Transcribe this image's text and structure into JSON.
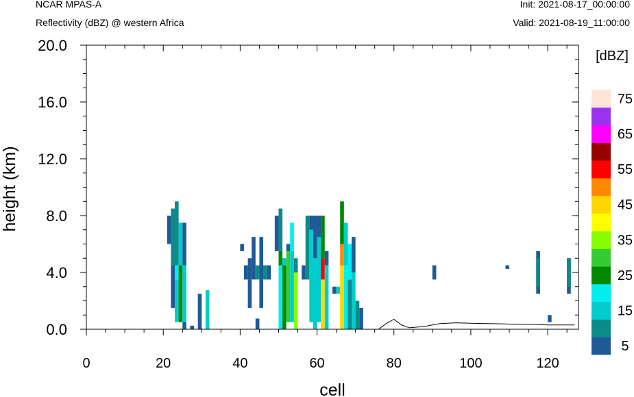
{
  "header": {
    "model": "NCAR MPAS-A",
    "field": "Reflectivity (dBZ) @ western Africa",
    "init": "Init: 2021-08-17_00:00:00",
    "valid": "Valid: 2021-08-19_11:00:00"
  },
  "chart_data": {
    "type": "heatmap",
    "title": "Reflectivity (dBZ) @ western Africa",
    "xlabel": "cell",
    "ylabel": "height (km)",
    "xlim": [
      0,
      128
    ],
    "ylim": [
      0,
      20
    ],
    "xticks": [
      "0",
      "20",
      "40",
      "60",
      "80",
      "100",
      "120"
    ],
    "yticks": [
      "0.0",
      "4.0",
      "8.0",
      "12.0",
      "16.0",
      "20.0"
    ],
    "cell_height_km": 0.25,
    "colorbar": {
      "title": "[dBZ]",
      "levels": [
        5,
        10,
        15,
        20,
        25,
        30,
        35,
        40,
        45,
        50,
        55,
        60,
        65,
        70,
        75
      ],
      "labels": [
        "5",
        "15",
        "25",
        "35",
        "45",
        "55",
        "65",
        "75"
      ],
      "colors": [
        "#1f5a96",
        "#0d8a8a",
        "#00cccc",
        "#00eeee",
        "#008800",
        "#33cc33",
        "#88ff00",
        "#ffff00",
        "#ffd700",
        "#ff8800",
        "#ff0000",
        "#990000",
        "#ff00ff",
        "#9933ee",
        "#ffe4d8"
      ]
    },
    "terrain": {
      "x": [
        0,
        76,
        78,
        80,
        81,
        82,
        84,
        86,
        88,
        92,
        96,
        100,
        104,
        108,
        112,
        116,
        120,
        124,
        127
      ],
      "height_km": [
        0.0,
        0.0,
        0.4,
        0.7,
        0.5,
        0.3,
        0.1,
        0.15,
        0.2,
        0.4,
        0.45,
        0.42,
        0.4,
        0.38,
        0.35,
        0.35,
        0.3,
        0.3,
        0.3
      ]
    },
    "columns": [
      {
        "x": 21,
        "w": 1,
        "segs": [
          [
            6.0,
            8.0,
            5
          ]
        ]
      },
      {
        "x": 22,
        "w": 1,
        "segs": [
          [
            1.5,
            4.5,
            5
          ],
          [
            4.5,
            8.5,
            10
          ]
        ]
      },
      {
        "x": 23,
        "w": 1,
        "segs": [
          [
            0.5,
            3.5,
            15
          ],
          [
            3.5,
            4.5,
            20
          ],
          [
            4.5,
            9.0,
            10
          ]
        ]
      },
      {
        "x": 24,
        "w": 1,
        "segs": [
          [
            0.5,
            4.5,
            25
          ],
          [
            4.5,
            7.5,
            15
          ]
        ]
      },
      {
        "x": 25,
        "w": 1,
        "segs": [
          [
            0.0,
            0.5,
            5
          ],
          [
            0.5,
            4.5,
            15
          ],
          [
            4.5,
            7.5,
            5
          ]
        ]
      },
      {
        "x": 27,
        "w": 1,
        "segs": [
          [
            0.0,
            0.25,
            5
          ]
        ]
      },
      {
        "x": 29,
        "w": 1,
        "segs": [
          [
            0.0,
            2.5,
            5
          ]
        ]
      },
      {
        "x": 31,
        "w": 1,
        "segs": [
          [
            0.0,
            2.75,
            15
          ]
        ]
      },
      {
        "x": 40,
        "w": 1,
        "segs": [
          [
            5.5,
            6.0,
            5
          ]
        ]
      },
      {
        "x": 41,
        "w": 1,
        "segs": [
          [
            3.5,
            4.5,
            5
          ]
        ]
      },
      {
        "x": 42,
        "w": 1,
        "segs": [
          [
            3.5,
            5.0,
            5
          ],
          [
            1.5,
            3.5,
            5
          ]
        ]
      },
      {
        "x": 43,
        "w": 1,
        "segs": [
          [
            3.5,
            6.5,
            5
          ]
        ]
      },
      {
        "x": 44,
        "w": 1,
        "segs": [
          [
            3.5,
            4.5,
            10
          ],
          [
            0.0,
            0.75,
            5
          ]
        ]
      },
      {
        "x": 45,
        "w": 1,
        "segs": [
          [
            1.5,
            3.5,
            5
          ],
          [
            3.5,
            6.5,
            5
          ]
        ]
      },
      {
        "x": 46,
        "w": 1,
        "segs": [
          [
            3.5,
            4.5,
            10
          ]
        ]
      },
      {
        "x": 47,
        "w": 1,
        "segs": [
          [
            3.5,
            4.5,
            5
          ]
        ]
      },
      {
        "x": 49,
        "w": 1,
        "segs": [
          [
            5.5,
            8.0,
            5
          ]
        ]
      },
      {
        "x": 50,
        "w": 1,
        "segs": [
          [
            0.0,
            4.5,
            20
          ],
          [
            4.5,
            5.5,
            25
          ],
          [
            5.5,
            8.5,
            10
          ]
        ]
      },
      {
        "x": 51,
        "w": 1,
        "segs": [
          [
            0.0,
            4.5,
            25
          ],
          [
            4.5,
            5.0,
            15
          ]
        ]
      },
      {
        "x": 52,
        "w": 1,
        "segs": [
          [
            0.5,
            5.5,
            30
          ],
          [
            5.5,
            6.0,
            5
          ]
        ]
      },
      {
        "x": 53,
        "w": 1,
        "segs": [
          [
            0.5,
            5.5,
            15
          ],
          [
            5.5,
            7.5,
            20
          ]
        ]
      },
      {
        "x": 54,
        "w": 1,
        "segs": [
          [
            0.0,
            4.0,
            35
          ],
          [
            4.0,
            5.0,
            10
          ]
        ]
      },
      {
        "x": 56,
        "w": 1,
        "segs": [
          [
            3.5,
            4.5,
            5
          ]
        ]
      },
      {
        "x": 57,
        "w": 1,
        "segs": [
          [
            3.5,
            8.0,
            10
          ]
        ]
      },
      {
        "x": 58,
        "w": 1,
        "segs": [
          [
            0.5,
            7.0,
            15
          ],
          [
            7.0,
            8.0,
            5
          ]
        ]
      },
      {
        "x": 59,
        "w": 1,
        "segs": [
          [
            0.0,
            5.0,
            15
          ],
          [
            5.0,
            8.0,
            5
          ]
        ]
      },
      {
        "x": 60,
        "w": 1,
        "segs": [
          [
            0.5,
            6.5,
            15
          ],
          [
            6.5,
            8.0,
            5
          ]
        ]
      },
      {
        "x": 61,
        "w": 1,
        "segs": [
          [
            0.0,
            3.5,
            45
          ],
          [
            3.5,
            5.0,
            55
          ],
          [
            5.0,
            8.0,
            25
          ]
        ]
      },
      {
        "x": 62,
        "w": 1,
        "segs": [
          [
            0.0,
            4.5,
            15
          ],
          [
            4.5,
            5.5,
            5
          ]
        ]
      },
      {
        "x": 64,
        "w": 1,
        "segs": [
          [
            2.5,
            3.0,
            5
          ]
        ]
      },
      {
        "x": 65,
        "w": 1,
        "segs": [
          [
            2.5,
            3.0,
            15
          ]
        ]
      },
      {
        "x": 66,
        "w": 1,
        "segs": [
          [
            0.0,
            4.5,
            45
          ],
          [
            4.5,
            6.0,
            50
          ],
          [
            6.0,
            9.0,
            25
          ]
        ]
      },
      {
        "x": 67,
        "w": 1,
        "segs": [
          [
            0.0,
            4.5,
            20
          ],
          [
            4.5,
            7.5,
            15
          ]
        ]
      },
      {
        "x": 68,
        "w": 1,
        "segs": [
          [
            0.0,
            3.5,
            10
          ],
          [
            3.5,
            6.0,
            20
          ]
        ]
      },
      {
        "x": 69,
        "w": 1,
        "segs": [
          [
            0.0,
            4.0,
            15
          ],
          [
            4.0,
            6.5,
            5
          ]
        ]
      },
      {
        "x": 70,
        "w": 1,
        "segs": [
          [
            0.0,
            2.0,
            10
          ]
        ]
      },
      {
        "x": 71,
        "w": 1,
        "segs": [
          [
            0.0,
            1.5,
            5
          ]
        ]
      },
      {
        "x": 90,
        "w": 1,
        "segs": [
          [
            3.5,
            4.5,
            5
          ]
        ]
      },
      {
        "x": 109,
        "w": 1,
        "segs": [
          [
            4.25,
            4.5,
            5
          ]
        ]
      },
      {
        "x": 117,
        "w": 1,
        "segs": [
          [
            2.5,
            5.5,
            5
          ],
          [
            3.0,
            5.0,
            10
          ]
        ]
      },
      {
        "x": 120,
        "w": 1,
        "segs": [
          [
            0.5,
            1.0,
            5
          ]
        ]
      },
      {
        "x": 125,
        "w": 1,
        "segs": [
          [
            2.5,
            5.0,
            5
          ],
          [
            3.0,
            5.0,
            10
          ]
        ]
      }
    ]
  }
}
